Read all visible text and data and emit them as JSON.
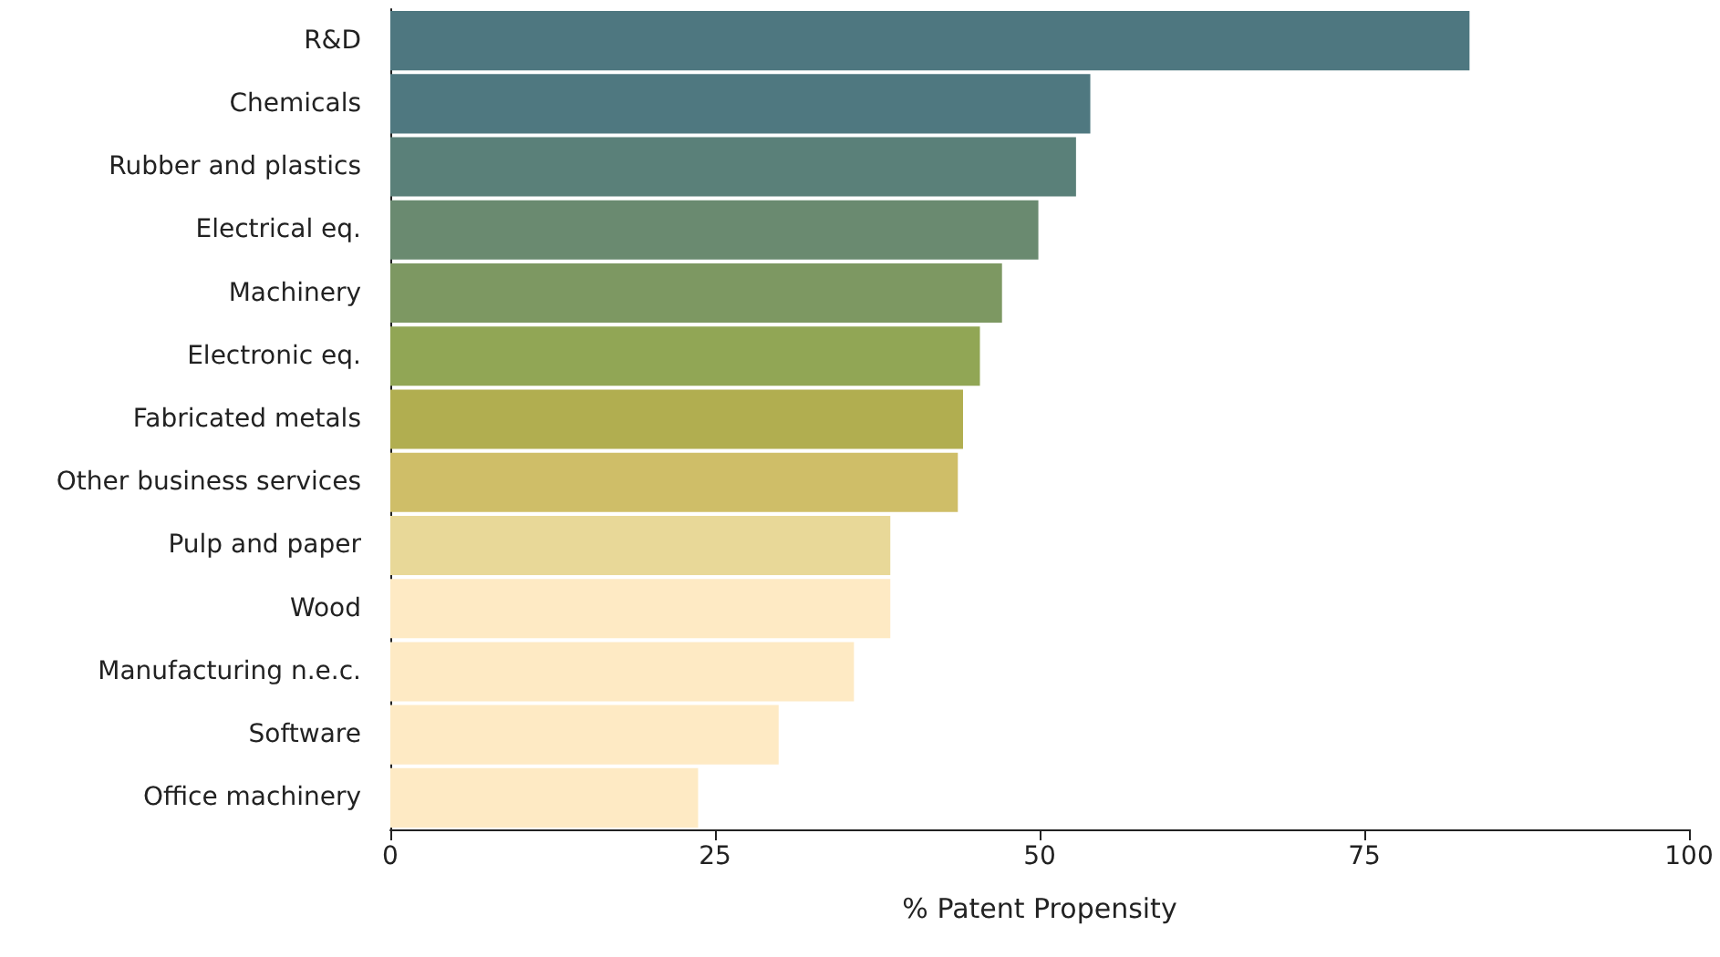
{
  "chart_data": {
    "type": "bar",
    "orientation": "horizontal",
    "xlabel": "% Patent Propensity",
    "categories": [
      "R&D",
      "Chemicals",
      "Rubber and plastics",
      "Electrical eq.",
      "Machinery",
      "Electronic eq.",
      "Fabricated metals",
      "Other business services",
      "Pulp and paper",
      "Wood",
      "Manufacturing n.e.c.",
      "Software",
      "Office machinery"
    ],
    "values": [
      83.1,
      53.9,
      52.8,
      49.9,
      47.1,
      45.4,
      44.1,
      43.7,
      38.5,
      38.5,
      35.7,
      29.9,
      23.7
    ],
    "colors": [
      "#4e7780",
      "#4f7880",
      "#5a8079",
      "#6a8a70",
      "#7d9862",
      "#91a655",
      "#b1ae50",
      "#cfbe68",
      "#e8d898",
      "#feeac4",
      "#feeac4",
      "#feeac4",
      "#feeac4"
    ],
    "xlim": [
      0,
      100
    ],
    "xticks": [
      0,
      25,
      50,
      75,
      100
    ],
    "grid": false
  }
}
